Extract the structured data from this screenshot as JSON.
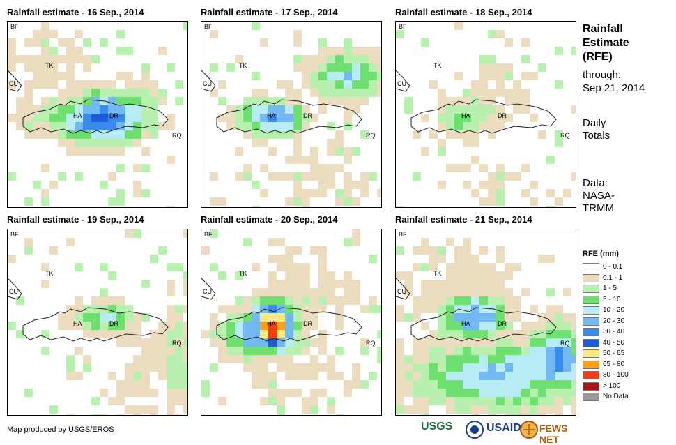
{
  "panels": [
    {
      "title": "Rainfall estimate - 16 Sep., 2014"
    },
    {
      "title": "Rainfall estimate - 17 Sep., 2014"
    },
    {
      "title": "Rainfall estimate - 18 Sep., 2014"
    },
    {
      "title": "Rainfall estimate - 19 Sep., 2014"
    },
    {
      "title": "Rainfall estimate - 20 Sep., 2014"
    },
    {
      "title": "Rainfall estimate - 21 Sep., 2014"
    }
  ],
  "place_labels": {
    "bf": "BF",
    "cu": "CU",
    "tk": "TK",
    "ha": "HA",
    "dr": "DR",
    "rq": "RQ"
  },
  "side": {
    "title_1": "Rainfall",
    "title_2": "Estimate",
    "title_3": "(RFE)",
    "through": "through:",
    "date": "Sep 21, 2014",
    "daily_1": "Daily",
    "daily_2": "Totals",
    "data_1": "Data:",
    "data_2": "NASA-",
    "data_3": "TRMM"
  },
  "legend": {
    "title": "RFE (mm)",
    "items": [
      {
        "label": "0 - 0.1",
        "color": "#ffffff"
      },
      {
        "label": "0.1 - 1",
        "color": "#ecdcc0"
      },
      {
        "label": "1 - 5",
        "color": "#b8f0b0"
      },
      {
        "label": "5 - 10",
        "color": "#6ee070"
      },
      {
        "label": "10 - 20",
        "color": "#b8ecf4"
      },
      {
        "label": "20 - 30",
        "color": "#72b8f2"
      },
      {
        "label": "30 - 40",
        "color": "#3a8aec"
      },
      {
        "label": "40 - 50",
        "color": "#1c5ad8"
      },
      {
        "label": "50 - 65",
        "color": "#fce880"
      },
      {
        "label": "65 - 80",
        "color": "#fca018"
      },
      {
        "label": "80 - 100",
        "color": "#f43c10"
      },
      {
        "label": "> 100",
        "color": "#a81818"
      },
      {
        "label": "No Data",
        "color": "#9a9a9a"
      }
    ]
  },
  "credit": "Map produced by USGS/EROS",
  "logos": {
    "usgs": "USGS",
    "usaid": "USAID",
    "fews": "FEWS NET"
  }
}
